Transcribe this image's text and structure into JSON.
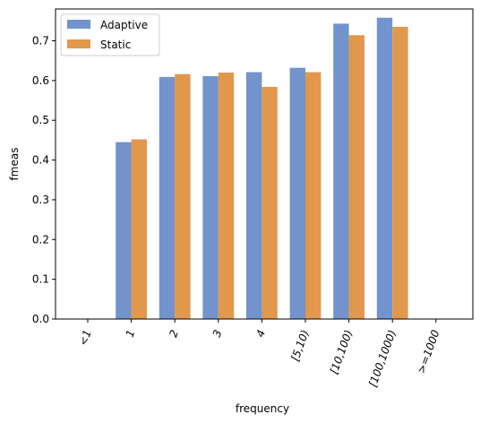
{
  "chart_data": {
    "type": "bar",
    "xlabel": "frequency",
    "ylabel": "fmeas",
    "categories": [
      "<1",
      "1",
      "2",
      "3",
      "4",
      "[5,10)",
      "[10,100)",
      "[100,1000)",
      ">=1000"
    ],
    "series": [
      {
        "name": "Adaptive",
        "color": "#7293cb",
        "values": [
          0,
          0.445,
          0.609,
          0.611,
          0.621,
          0.632,
          0.743,
          0.758,
          0
        ]
      },
      {
        "name": "Static",
        "color": "#e1974c",
        "values": [
          0,
          0.452,
          0.616,
          0.62,
          0.584,
          0.621,
          0.714,
          0.735,
          0
        ]
      }
    ],
    "ylim": [
      0,
      0.78
    ],
    "yticks": [
      0.0,
      0.1,
      0.2,
      0.3,
      0.4,
      0.5,
      0.6,
      0.7
    ],
    "ytick_labels": [
      "0.0",
      "0.1",
      "0.2",
      "0.3",
      "0.4",
      "0.5",
      "0.6",
      "0.7"
    ],
    "legend_position": "top-left",
    "grid": false
  }
}
